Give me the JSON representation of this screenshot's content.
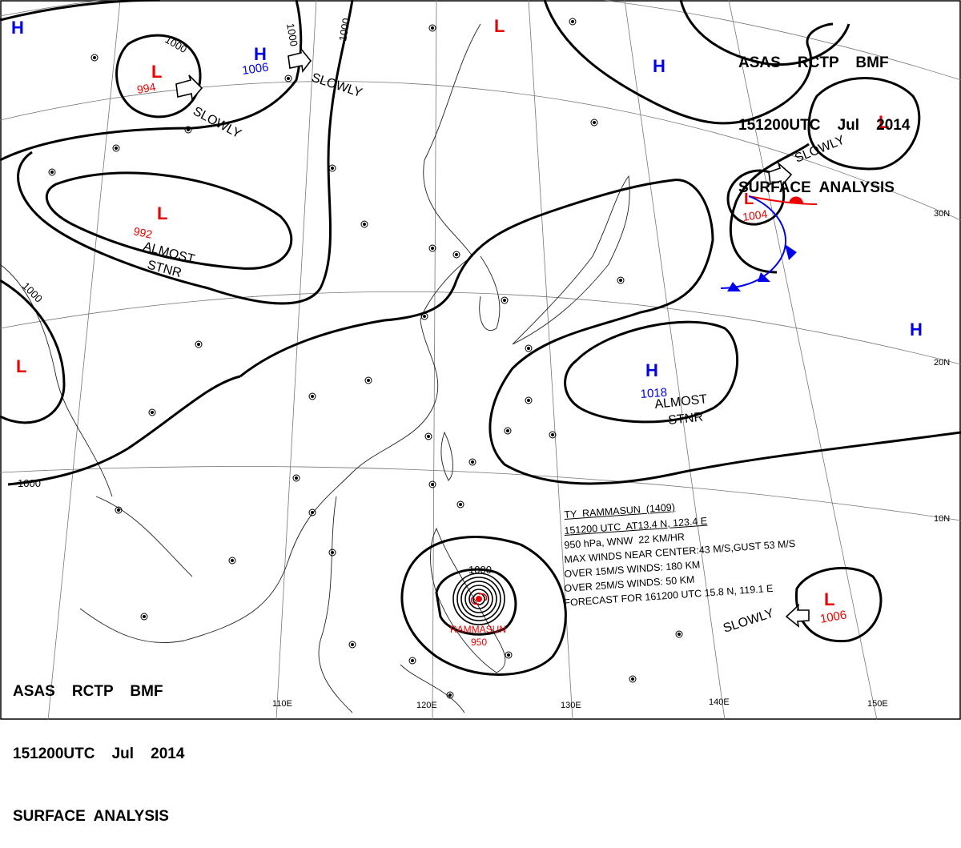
{
  "header": {
    "line1": "ASAS    RCTP    BMF",
    "line2": "151200UTC    Jul    2014",
    "line3": "SURFACE  ANALYSIS"
  },
  "typhoon_info": {
    "name_line": "TY  RAMMASUN  (1409)",
    "position": "151200 UTC  AT13.4 N, 123.4 E",
    "movement": "950 hPa, WNW  22 KM/HR",
    "max_winds": "MAX WINDS NEAR CENTER:43 M/S,GUST 53 M/S",
    "over15": "OVER 15M/S WINDS: 180 KM",
    "over25": "OVER 25M/S WINDS: 50 KM",
    "forecast": "FORECAST FOR 161200 UTC 15.8 N, 119.1 E"
  },
  "colors": {
    "high": "#0000ee",
    "low": "#ee0000",
    "front_warm": "#ee0000",
    "front_cold": "#0000ee",
    "grid": "#777777"
  },
  "pressure_centers": [
    {
      "type": "H",
      "value": ""
    },
    {
      "type": "H",
      "value": "1006"
    },
    {
      "type": "L",
      "value": "994"
    },
    {
      "type": "L",
      "value": ""
    },
    {
      "type": "H",
      "value": ""
    },
    {
      "type": "L",
      "value": ""
    },
    {
      "type": "L",
      "value": "992"
    },
    {
      "type": "L",
      "value": "1004"
    },
    {
      "type": "L",
      "value": ""
    },
    {
      "type": "H",
      "value": "1018"
    },
    {
      "type": "H",
      "value": ""
    },
    {
      "type": "L",
      "value": "1006"
    }
  ],
  "typhoon": {
    "name": "RAMMASUN",
    "value": "950"
  },
  "isobar_labels": [
    "1000",
    "1000",
    "1000",
    "1000",
    "1000",
    "1000"
  ],
  "annotations": {
    "slowly": "SLOWLY",
    "almost": "ALMOST",
    "stnr": "STNR"
  },
  "grid_labels": {
    "lon": [
      "110E",
      "120E",
      "130E",
      "140E",
      "150E"
    ],
    "lat": [
      "30N",
      "20N",
      "10N"
    ]
  }
}
